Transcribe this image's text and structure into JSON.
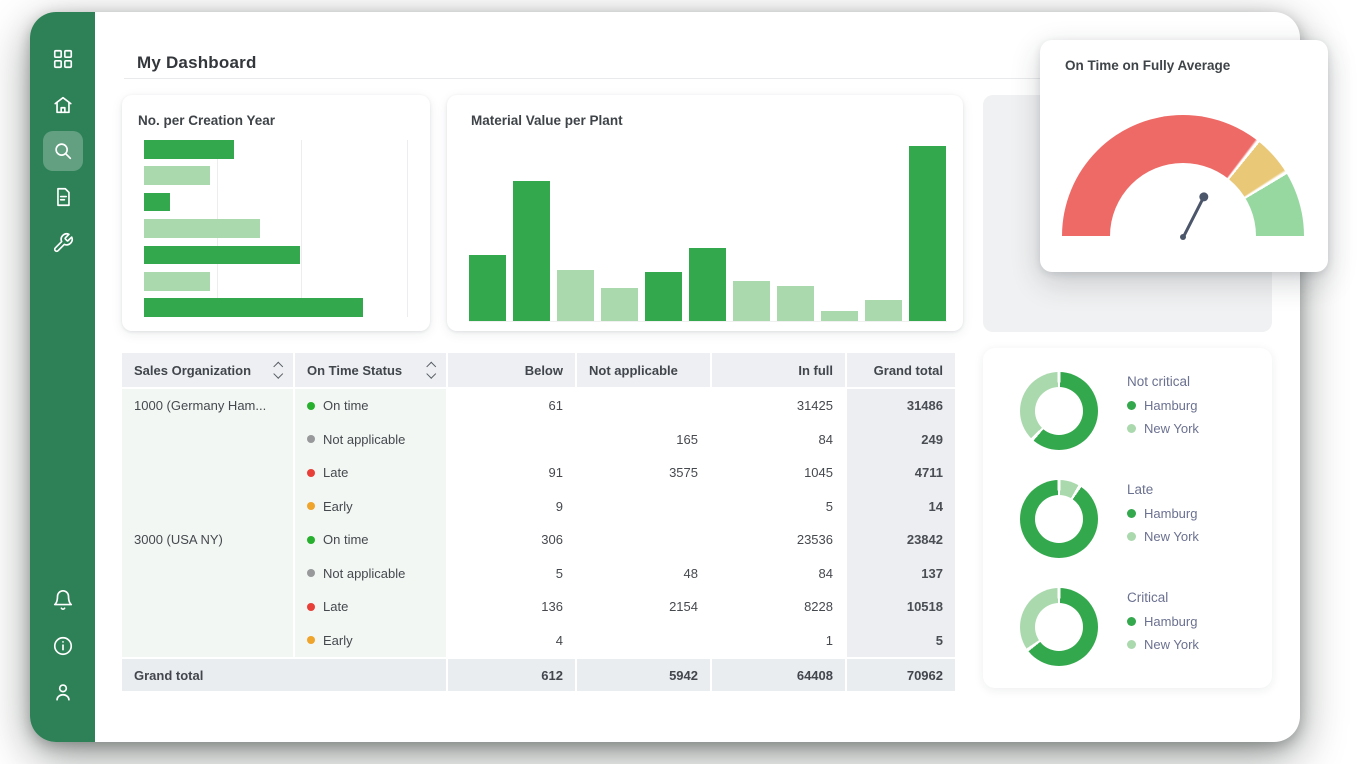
{
  "page": {
    "title": "My Dashboard"
  },
  "colors": {
    "sidebar": "#2e8157",
    "bar_dark": "#34a84d",
    "bar_light": "#abd9ae",
    "gauge_red": "#ee6a66",
    "gauge_yellow": "#e9c878",
    "gauge_green": "#97d8a1",
    "needle": "#4c566b",
    "status_on_time": "#27b02e",
    "status_not_applicable": "#97999b",
    "status_late": "#e83f38",
    "status_early": "#efa42c"
  },
  "sidebar": {
    "items": [
      {
        "id": "apps",
        "icon": "grid-icon",
        "active": false
      },
      {
        "id": "home",
        "icon": "home-icon",
        "active": false
      },
      {
        "id": "search",
        "icon": "search-icon",
        "active": true
      },
      {
        "id": "documents",
        "icon": "document-icon",
        "active": false
      },
      {
        "id": "tools",
        "icon": "wrench-icon",
        "active": false
      }
    ],
    "bottom_items": [
      {
        "id": "notifications",
        "icon": "bell-icon"
      },
      {
        "id": "info",
        "icon": "info-icon"
      },
      {
        "id": "profile",
        "icon": "user-icon"
      }
    ]
  },
  "cards": {
    "creation_year_title": "No. per Creation Year",
    "material_value_title": "Material Value per Plant",
    "gauge_title": "On Time on Fully Average"
  },
  "chart_data": [
    {
      "id": "creation-year",
      "type": "bar",
      "orientation": "horizontal",
      "title": "No. per Creation Year",
      "values_pct_of_max": [
        34,
        25,
        10,
        44,
        59,
        25,
        83
      ],
      "bar_shades": [
        "dark",
        "light",
        "dark",
        "light",
        "dark",
        "light",
        "dark"
      ],
      "gridlines_pct": [
        28,
        60,
        100
      ],
      "axis_labels_visible": false
    },
    {
      "id": "material-value",
      "type": "bar",
      "orientation": "vertical",
      "title": "Material Value per Plant",
      "values_pct_of_max": [
        38,
        80,
        29,
        19,
        28,
        42,
        23,
        20,
        6,
        12,
        100
      ],
      "bar_shades": [
        "dark",
        "dark",
        "light",
        "light",
        "dark",
        "dark",
        "light",
        "light",
        "light",
        "light",
        "dark"
      ],
      "axis_labels_visible": false
    },
    {
      "id": "on-time-gauge",
      "type": "gauge",
      "title": "On Time on Fully Average",
      "segments": [
        {
          "name": "red",
          "sweep_deg": 128
        },
        {
          "name": "yellow",
          "sweep_deg": 20
        },
        {
          "name": "green",
          "sweep_deg": 32
        }
      ],
      "needle_sweep_deg": 117
    },
    {
      "id": "criticality-donuts",
      "type": "pie",
      "donuts": [
        {
          "title": "Not critical",
          "segments": [
            {
              "name": "Hamburg",
              "shade": "dark",
              "pct": 62
            },
            {
              "name": "New York",
              "shade": "light",
              "pct": 38
            }
          ],
          "legend": [
            {
              "label": "Hamburg",
              "shade": "dark"
            },
            {
              "label": "New York",
              "shade": "light"
            }
          ]
        },
        {
          "title": "Late",
          "segments": [
            {
              "name": "New York",
              "shade": "light",
              "pct": 9
            },
            {
              "name": "Hamburg",
              "shade": "dark",
              "pct": 91
            }
          ],
          "legend": [
            {
              "label": "Hamburg",
              "shade": "dark"
            },
            {
              "label": "New York",
              "shade": "light"
            }
          ]
        },
        {
          "title": "Critical",
          "segments": [
            {
              "name": "Hamburg",
              "shade": "dark",
              "pct": 65
            },
            {
              "name": "New York",
              "shade": "light",
              "pct": 35
            }
          ],
          "legend": [
            {
              "label": "Hamburg",
              "shade": "dark"
            },
            {
              "label": "New York",
              "shade": "light"
            }
          ]
        }
      ]
    }
  ],
  "table": {
    "headers": [
      {
        "label": "Sales Organization",
        "sortable": true,
        "align": "left"
      },
      {
        "label": "On Time Status",
        "sortable": true,
        "align": "left"
      },
      {
        "label": "Below",
        "sortable": false,
        "align": "right"
      },
      {
        "label": "Not applicable",
        "sortable": false,
        "align": "left"
      },
      {
        "label": "In full",
        "sortable": false,
        "align": "right"
      },
      {
        "label": "Grand total",
        "sortable": false,
        "align": "right"
      }
    ],
    "groups": [
      {
        "org": "1000 (Germany Ham...",
        "rows": [
          {
            "status": "On time",
            "dot": "#27b02e",
            "below": "61",
            "not_applicable": "",
            "in_full": "31425",
            "grand_total": "31486"
          },
          {
            "status": "Not applicable",
            "dot": "#97999b",
            "below": "",
            "not_applicable": "165",
            "in_full": "84",
            "grand_total": "249"
          },
          {
            "status": "Late",
            "dot": "#e83f38",
            "below": "91",
            "not_applicable": "3575",
            "in_full": "1045",
            "grand_total": "4711"
          },
          {
            "status": "Early",
            "dot": "#efa42c",
            "below": "9",
            "not_applicable": "",
            "in_full": "5",
            "grand_total": "14"
          }
        ]
      },
      {
        "org": "3000 (USA NY)",
        "rows": [
          {
            "status": "On time",
            "dot": "#27b02e",
            "below": "306",
            "not_applicable": "",
            "in_full": "23536",
            "grand_total": "23842"
          },
          {
            "status": "Not applicable",
            "dot": "#97999b",
            "below": "5",
            "not_applicable": "48",
            "in_full": "84",
            "grand_total": "137"
          },
          {
            "status": "Late",
            "dot": "#e83f38",
            "below": "136",
            "not_applicable": "2154",
            "in_full": "8228",
            "grand_total": "10518"
          },
          {
            "status": "Early",
            "dot": "#efa42c",
            "below": "4",
            "not_applicable": "",
            "in_full": "1",
            "grand_total": "5"
          }
        ]
      }
    ],
    "footer": {
      "label": "Grand total",
      "below": "612",
      "not_applicable": "5942",
      "in_full": "64408",
      "grand_total": "70962"
    }
  }
}
